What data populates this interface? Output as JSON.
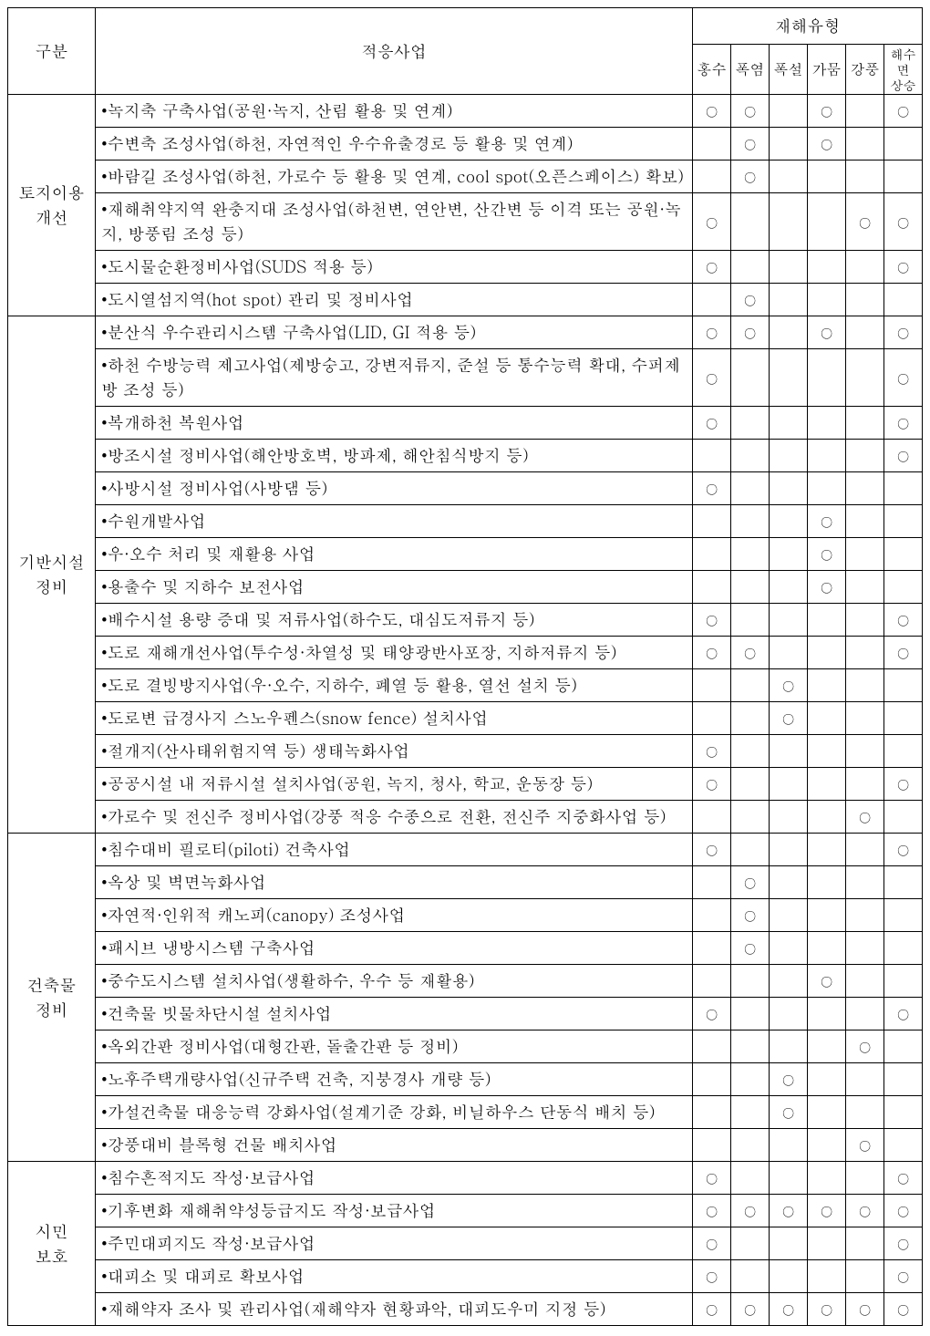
{
  "header": {
    "col_category": "구분",
    "col_project": "적응사업",
    "col_types_group": "재해유형",
    "types": [
      "홍수",
      "폭염",
      "폭설",
      "가뭄",
      "강풍",
      "해수면\n상승"
    ]
  },
  "circle": "○",
  "categories": [
    {
      "name": "토지이용\n개선",
      "rows": [
        {
          "text": "•녹지축 구축사업(공원·녹지, 산림 활용 및 연계)",
          "flags": [
            1,
            1,
            0,
            1,
            0,
            1
          ]
        },
        {
          "text": "•수변축 조성사업(하천, 자연적인 우수유출경로 등 활용 및 연계)",
          "flags": [
            0,
            1,
            0,
            1,
            0,
            0
          ]
        },
        {
          "text": "•바람길 조성사업(하천, 가로수 등 활용 및 연계, cool spot(오픈스페이스) 확보)",
          "flags": [
            0,
            1,
            0,
            0,
            0,
            0
          ]
        },
        {
          "text": "•재해취약지역 완충지대 조성사업(하천변, 연안변, 산간변 등 이격 또는 공원·녹지, 방풍림 조성 등)",
          "flags": [
            1,
            0,
            0,
            0,
            1,
            1
          ]
        },
        {
          "text": "•도시물순환정비사업(SUDS 적용 등)",
          "flags": [
            1,
            0,
            0,
            0,
            0,
            1
          ]
        },
        {
          "text": "•도시열섬지역(hot spot) 관리 및 정비사업",
          "flags": [
            0,
            1,
            0,
            0,
            0,
            0
          ]
        }
      ]
    },
    {
      "name": "기반시설\n정비",
      "rows": [
        {
          "text": "•분산식 우수관리시스템 구축사업(LID, GI 적용 등)",
          "flags": [
            1,
            1,
            0,
            1,
            0,
            1
          ]
        },
        {
          "text": "•하천 수방능력 제고사업(제방숭고, 강변저류지, 준설 등 통수능력 확대, 수퍼제방 조성 등)",
          "flags": [
            1,
            0,
            0,
            0,
            0,
            1
          ]
        },
        {
          "text": "•복개하천 복원사업",
          "flags": [
            1,
            0,
            0,
            0,
            0,
            1
          ]
        },
        {
          "text": "•방조시설 정비사업(해안방호벽, 방파제, 해안침식방지 등)",
          "flags": [
            0,
            0,
            0,
            0,
            0,
            1
          ]
        },
        {
          "text": "•사방시설 정비사업(사방댐 등)",
          "flags": [
            1,
            0,
            0,
            0,
            0,
            0
          ]
        },
        {
          "text": "•수원개발사업",
          "flags": [
            0,
            0,
            0,
            1,
            0,
            0
          ]
        },
        {
          "text": "•우·오수 처리 및 재활용 사업",
          "flags": [
            0,
            0,
            0,
            1,
            0,
            0
          ]
        },
        {
          "text": "•용출수 및 지하수 보전사업",
          "flags": [
            0,
            0,
            0,
            1,
            0,
            0
          ]
        },
        {
          "text": "•배수시설 용량 증대 및 저류사업(하수도, 대심도저류지 등)",
          "flags": [
            1,
            0,
            0,
            0,
            0,
            1
          ]
        },
        {
          "text": "•도로 재해개선사업(투수성·차열성 및 태양광반사포장, 지하저류지 등)",
          "flags": [
            1,
            1,
            0,
            0,
            0,
            1
          ]
        },
        {
          "text": "•도로 결빙방지사업(우·오수, 지하수, 폐열 등 활용, 열선 설치 등)",
          "flags": [
            0,
            0,
            1,
            0,
            0,
            0
          ]
        },
        {
          "text": "•도로변 급경사지 스노우펜스(snow fence) 설치사업",
          "flags": [
            0,
            0,
            1,
            0,
            0,
            0
          ]
        },
        {
          "text": "•절개지(산사태위험지역 등) 생태녹화사업",
          "flags": [
            1,
            0,
            0,
            0,
            0,
            0
          ]
        },
        {
          "text": "•공공시설 내 저류시설 설치사업(공원, 녹지, 청사, 학교, 운동장 등)",
          "flags": [
            1,
            0,
            0,
            0,
            0,
            1
          ]
        },
        {
          "text": "•가로수 및 전신주 정비사업(강풍 적응 수종으로 전환, 전신주 지중화사업 등)",
          "flags": [
            0,
            0,
            0,
            0,
            1,
            0
          ]
        }
      ]
    },
    {
      "name": "건축물\n정비",
      "rows": [
        {
          "text": "•침수대비 필로티(piloti) 건축사업",
          "flags": [
            1,
            0,
            0,
            0,
            0,
            1
          ]
        },
        {
          "text": "•옥상 및 벽면녹화사업",
          "flags": [
            0,
            1,
            0,
            0,
            0,
            0
          ]
        },
        {
          "text": "•자연적·인위적 캐노피(canopy) 조성사업",
          "flags": [
            0,
            1,
            0,
            0,
            0,
            0
          ]
        },
        {
          "text": "•패시브 냉방시스템 구축사업",
          "flags": [
            0,
            1,
            0,
            0,
            0,
            0
          ]
        },
        {
          "text": "•중수도시스템 설치사업(생활하수, 우수 등 재활용)",
          "flags": [
            0,
            0,
            0,
            1,
            0,
            0
          ]
        },
        {
          "text": "•건축물 빗물차단시설 설치사업",
          "flags": [
            1,
            0,
            0,
            0,
            0,
            1
          ]
        },
        {
          "text": "•옥외간판 정비사업(대형간판, 돌출간판 등 정비)",
          "flags": [
            0,
            0,
            0,
            0,
            1,
            0
          ]
        },
        {
          "text": "•노후주택개량사업(신규주택 건축, 지붕경사 개량 등)",
          "flags": [
            0,
            0,
            1,
            0,
            0,
            0
          ]
        },
        {
          "text": "•가설건축물 대응능력 강화사업(설계기준 강화, 비닐하우스 단동식 배치 등)",
          "flags": [
            0,
            0,
            1,
            0,
            0,
            0
          ]
        },
        {
          "text": "•강풍대비 블록형 건물 배치사업",
          "flags": [
            0,
            0,
            0,
            0,
            1,
            0
          ]
        }
      ]
    },
    {
      "name": "시민\n보호",
      "rows": [
        {
          "text": "•침수흔적지도 작성·보급사업",
          "flags": [
            1,
            0,
            0,
            0,
            0,
            1
          ]
        },
        {
          "text": "•기후변화 재해취약성등급지도 작성·보급사업",
          "flags": [
            1,
            1,
            1,
            1,
            1,
            1
          ]
        },
        {
          "text": "•주민대피지도 작성·보급사업",
          "flags": [
            1,
            0,
            0,
            0,
            0,
            1
          ]
        },
        {
          "text": "•대피소 및 대피로 확보사업",
          "flags": [
            1,
            0,
            0,
            0,
            0,
            1
          ]
        },
        {
          "text": "•재해약자 조사 및 관리사업(재해약자 현황파악, 대피도우미 지정 등)",
          "flags": [
            1,
            1,
            1,
            1,
            1,
            1
          ]
        }
      ]
    }
  ]
}
